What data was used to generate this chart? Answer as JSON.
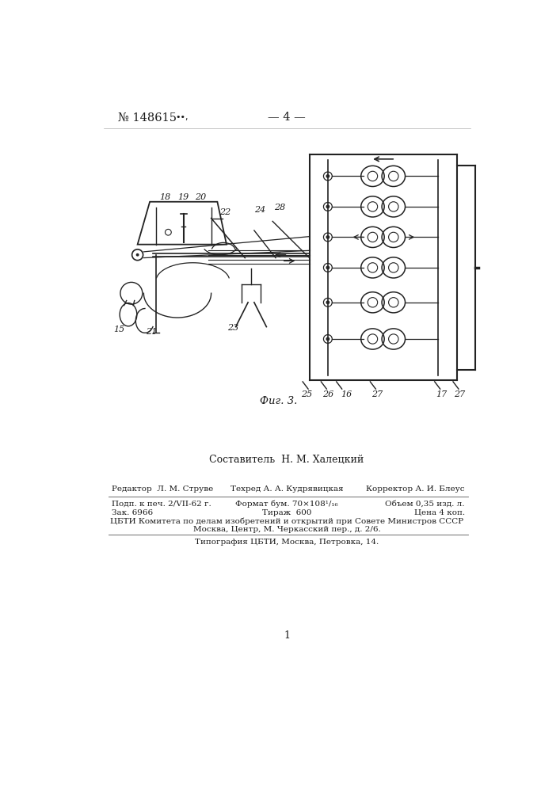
{
  "header_left": "№ 148615",
  "header_dots": "••,",
  "header_center": "— 4 —",
  "fig_caption": "Фиг. 3.",
  "author_line": "Составитель  Н. М. Халецкий",
  "row1_left": "Редактор  Л. М. Струве",
  "row1_mid": "Техред А. А. Кудрявицкая",
  "row1_right": "Корректор А. И. Блеус",
  "row2_left": "Подп. к печ. 2/VII-62 г.",
  "row2_mid": "Формат бум. 70×108¹/₁₆",
  "row2_right": "Объем 0,35 изд. л.",
  "row3_left": "Зак. 6966",
  "row3_mid": "Тираж  600",
  "row3_right": "Цена 4 коп.",
  "row4": "ЦБТИ Комитета по делам изобретений и открытий при Совете Министров СССР",
  "row5": "Москва, Центр, М. Черкасский пер., д. 2/6.",
  "row6": "Типография ЦБТИ, Москва, Петровка, 14.",
  "page_num": "1",
  "bg_color": "#ffffff",
  "text_color": "#1a1a1a",
  "line_color": "#2a2a2a",
  "diagram_color": "#222222"
}
